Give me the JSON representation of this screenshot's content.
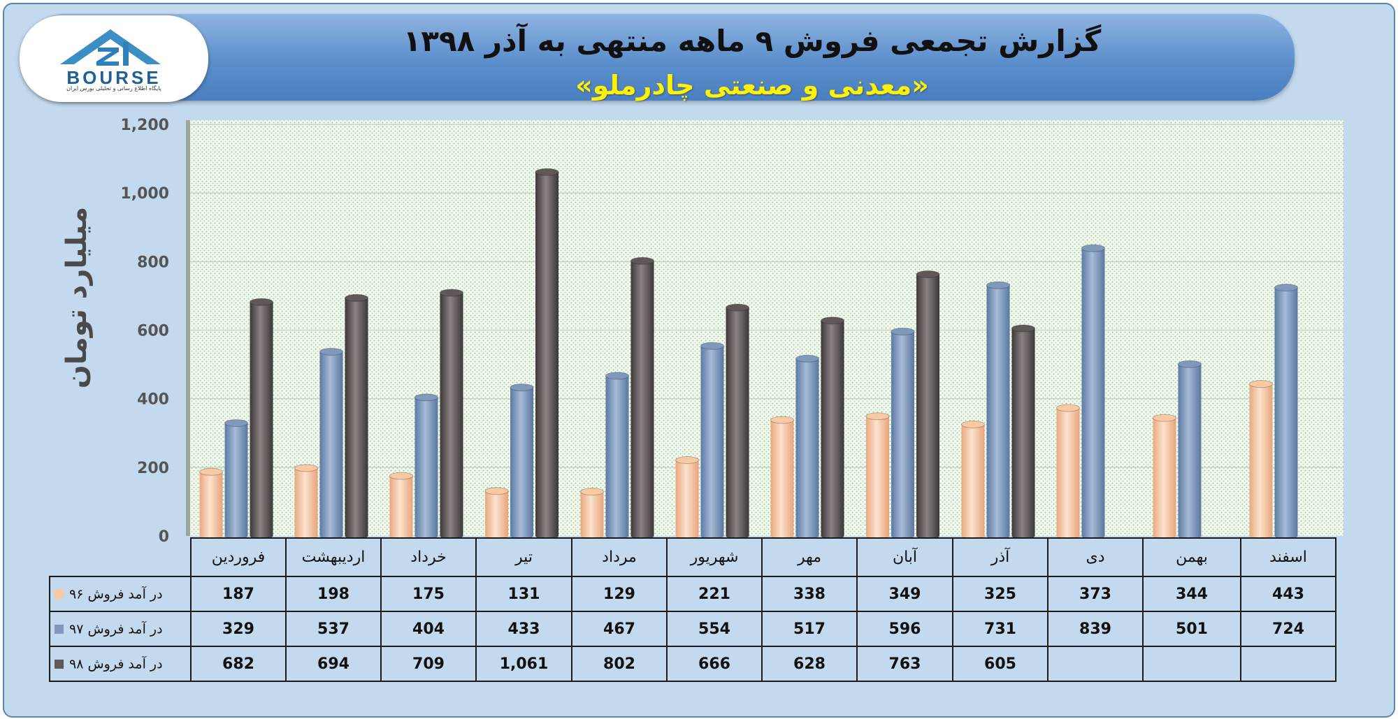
{
  "header": {
    "title": "گزارش تجمعی فروش ۹ ماهه منتهی به آذر ۱۳۹۸",
    "subtitle": "«معدنی و صنعتی چادرملو»",
    "logo_text": "BOURSE",
    "logo_subtext": "پایگاه اطلاع رسانی و تحلیلی بورس ایران"
  },
  "chart_data": {
    "type": "bar",
    "ylabel": "میلیارد تومان",
    "ylim": [
      0,
      1200
    ],
    "yticks": [
      0,
      200,
      400,
      600,
      800,
      1000,
      1200
    ],
    "ytick_labels": [
      "0",
      "200",
      "400",
      "600",
      "800",
      "1,000",
      "1,200"
    ],
    "grid": true,
    "categories": [
      "فروردین",
      "اردیبهشت",
      "خرداد",
      "تیر",
      "مرداد",
      "شهریور",
      "مهر",
      "آبان",
      "آذر",
      "دی",
      "بهمن",
      "اسفند"
    ],
    "series": [
      {
        "name": "در آمد فروش ۹۶",
        "color": "#f9c9a4",
        "values": [
          187,
          198,
          175,
          131,
          129,
          221,
          338,
          349,
          325,
          373,
          344,
          443
        ],
        "labels": [
          "187",
          "198",
          "175",
          "131",
          "129",
          "221",
          "338",
          "349",
          "325",
          "373",
          "344",
          "443"
        ]
      },
      {
        "name": "در آمد فروش ۹۷",
        "color": "#7f98bb",
        "values": [
          329,
          537,
          404,
          433,
          467,
          554,
          517,
          596,
          731,
          839,
          501,
          724
        ],
        "labels": [
          "329",
          "537",
          "404",
          "433",
          "467",
          "554",
          "517",
          "596",
          "731",
          "839",
          "501",
          "724"
        ]
      },
      {
        "name": "در آمد فروش ۹۸",
        "color": "#5f5758",
        "values": [
          682,
          694,
          709,
          1061,
          802,
          666,
          628,
          763,
          605,
          null,
          null,
          null
        ],
        "labels": [
          "682",
          "694",
          "709",
          "1,061",
          "802",
          "666",
          "628",
          "763",
          "605",
          "",
          "",
          ""
        ]
      }
    ]
  }
}
